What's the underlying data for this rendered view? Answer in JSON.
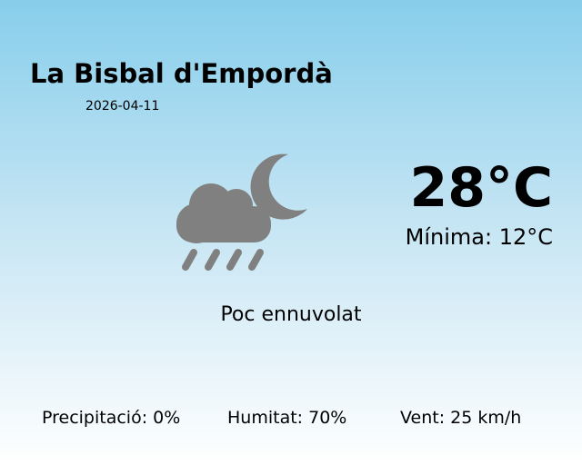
{
  "location": "La Bisbal d'Empordà",
  "date": "2026-04-11",
  "temperature": "28°C",
  "minimum": "Mínima: 12°C",
  "condition": "Poc ennuvolat",
  "condition_icon": "cloud-rain-moon-icon",
  "icon_color": "#808080",
  "stats": {
    "precipitation": "Precipitació: 0%",
    "humidity": "Humitat: 70%",
    "wind": "Vent: 25 km/h"
  }
}
